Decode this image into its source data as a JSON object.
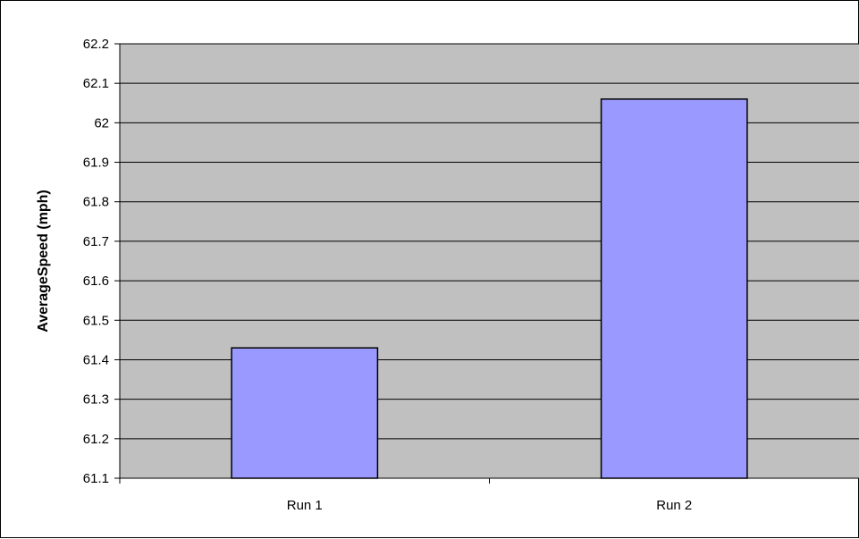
{
  "chart_data": {
    "type": "bar",
    "categories": [
      "Run 1",
      "Run 2"
    ],
    "values": [
      61.43,
      62.06
    ],
    "title": "",
    "xlabel": "",
    "ylabel": "AverageSpeed (mph)",
    "ylim": [
      61.1,
      62.2
    ],
    "yticks": [
      61.1,
      61.2,
      61.3,
      61.4,
      61.5,
      61.6,
      61.7,
      61.8,
      61.9,
      62,
      62.1,
      62.2
    ],
    "ytick_labels": [
      "61.1",
      "61.2",
      "61.3",
      "61.4",
      "61.5",
      "61.6",
      "61.7",
      "61.8",
      "61.9",
      "62",
      "62.1",
      "62.2"
    ],
    "grid": true,
    "legend": "none",
    "colors": {
      "bar_fill": "#9999ff",
      "bar_stroke": "#000000",
      "plot_background": "#c0c0c0",
      "gridline": "#000000"
    }
  }
}
